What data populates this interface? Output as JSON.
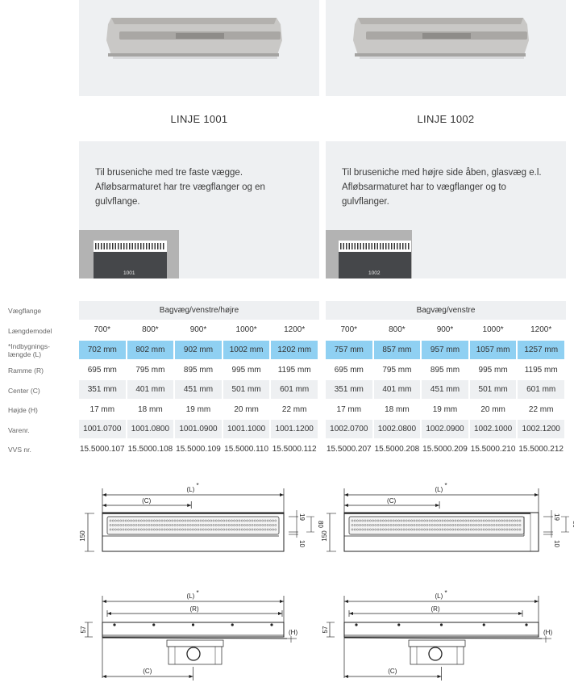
{
  "products": [
    {
      "name": "LINJE 1001",
      "description": [
        "Til bruseniche med tre faste vægge.",
        "Afløbsarmaturet har tre vægflanger og en",
        "gulvflange."
      ],
      "thumb_label": "1001",
      "wall_flange": "Bagvæg/venstre/højre",
      "models": [
        "700*",
        "800*",
        "900*",
        "1000*",
        "1200*"
      ],
      "install_length": [
        "702 mm",
        "802 mm",
        "902 mm",
        "1002 mm",
        "1202 mm"
      ],
      "frame": [
        "695 mm",
        "795 mm",
        "895 mm",
        "995 mm",
        "1195 mm"
      ],
      "center": [
        "351 mm",
        "401 mm",
        "451 mm",
        "501 mm",
        "601 mm"
      ],
      "height": [
        "17 mm",
        "18 mm",
        "19 mm",
        "20 mm",
        "22 mm"
      ],
      "item_no": [
        "1001.0700",
        "1001.0800",
        "1001.0900",
        "1001.1000",
        "1001.1200"
      ],
      "vvs_no": [
        "15.5000.107",
        "15.5000.108",
        "15.5000.109",
        "15.5000.110",
        "15.5000.112"
      ]
    },
    {
      "name": "LINJE 1002",
      "description": [
        "Til bruseniche med højre side åben, glasvæg e.l.",
        "Afløbsarmaturet har to vægflanger og to",
        "gulvflanger."
      ],
      "thumb_label": "1002",
      "wall_flange": "Bagvæg/venstre",
      "models": [
        "700*",
        "800*",
        "900*",
        "1000*",
        "1200*"
      ],
      "install_length": [
        "757 mm",
        "857 mm",
        "957 mm",
        "1057 mm",
        "1257 mm"
      ],
      "frame": [
        "695 mm",
        "795 mm",
        "895 mm",
        "995 mm",
        "1195 mm"
      ],
      "center": [
        "351 mm",
        "401 mm",
        "451 mm",
        "501 mm",
        "601 mm"
      ],
      "height": [
        "17 mm",
        "18 mm",
        "19 mm",
        "20 mm",
        "22 mm"
      ],
      "item_no": [
        "1002.0700",
        "1002.0800",
        "1002.0900",
        "1002.1000",
        "1002.1200"
      ],
      "vvs_no": [
        "15.5000.207",
        "15.5000.208",
        "15.5000.209",
        "15.5000.210",
        "15.5000.212"
      ]
    }
  ],
  "row_labels": {
    "wall_flange": "Vægflange",
    "models": "Længdemodel",
    "install_length_1": "*Indbygnings-",
    "install_length_2": "længde (L)",
    "frame": "Ramme (R)",
    "center": "Center (C)",
    "height": "Højde (H)",
    "item_no": "Varenr.",
    "vvs_no": "VVS nr."
  },
  "drawing_labels": {
    "length": "(L)",
    "asterisk": "*",
    "center": "(C)",
    "frame": "(R)",
    "height": "(H)",
    "width": "150",
    "grate_top": "19",
    "grate_width": "80",
    "grate_bottom": "10",
    "depth": "57"
  },
  "colors": {
    "highlight": "#8fd0f2",
    "panel": "#eef0f2"
  }
}
